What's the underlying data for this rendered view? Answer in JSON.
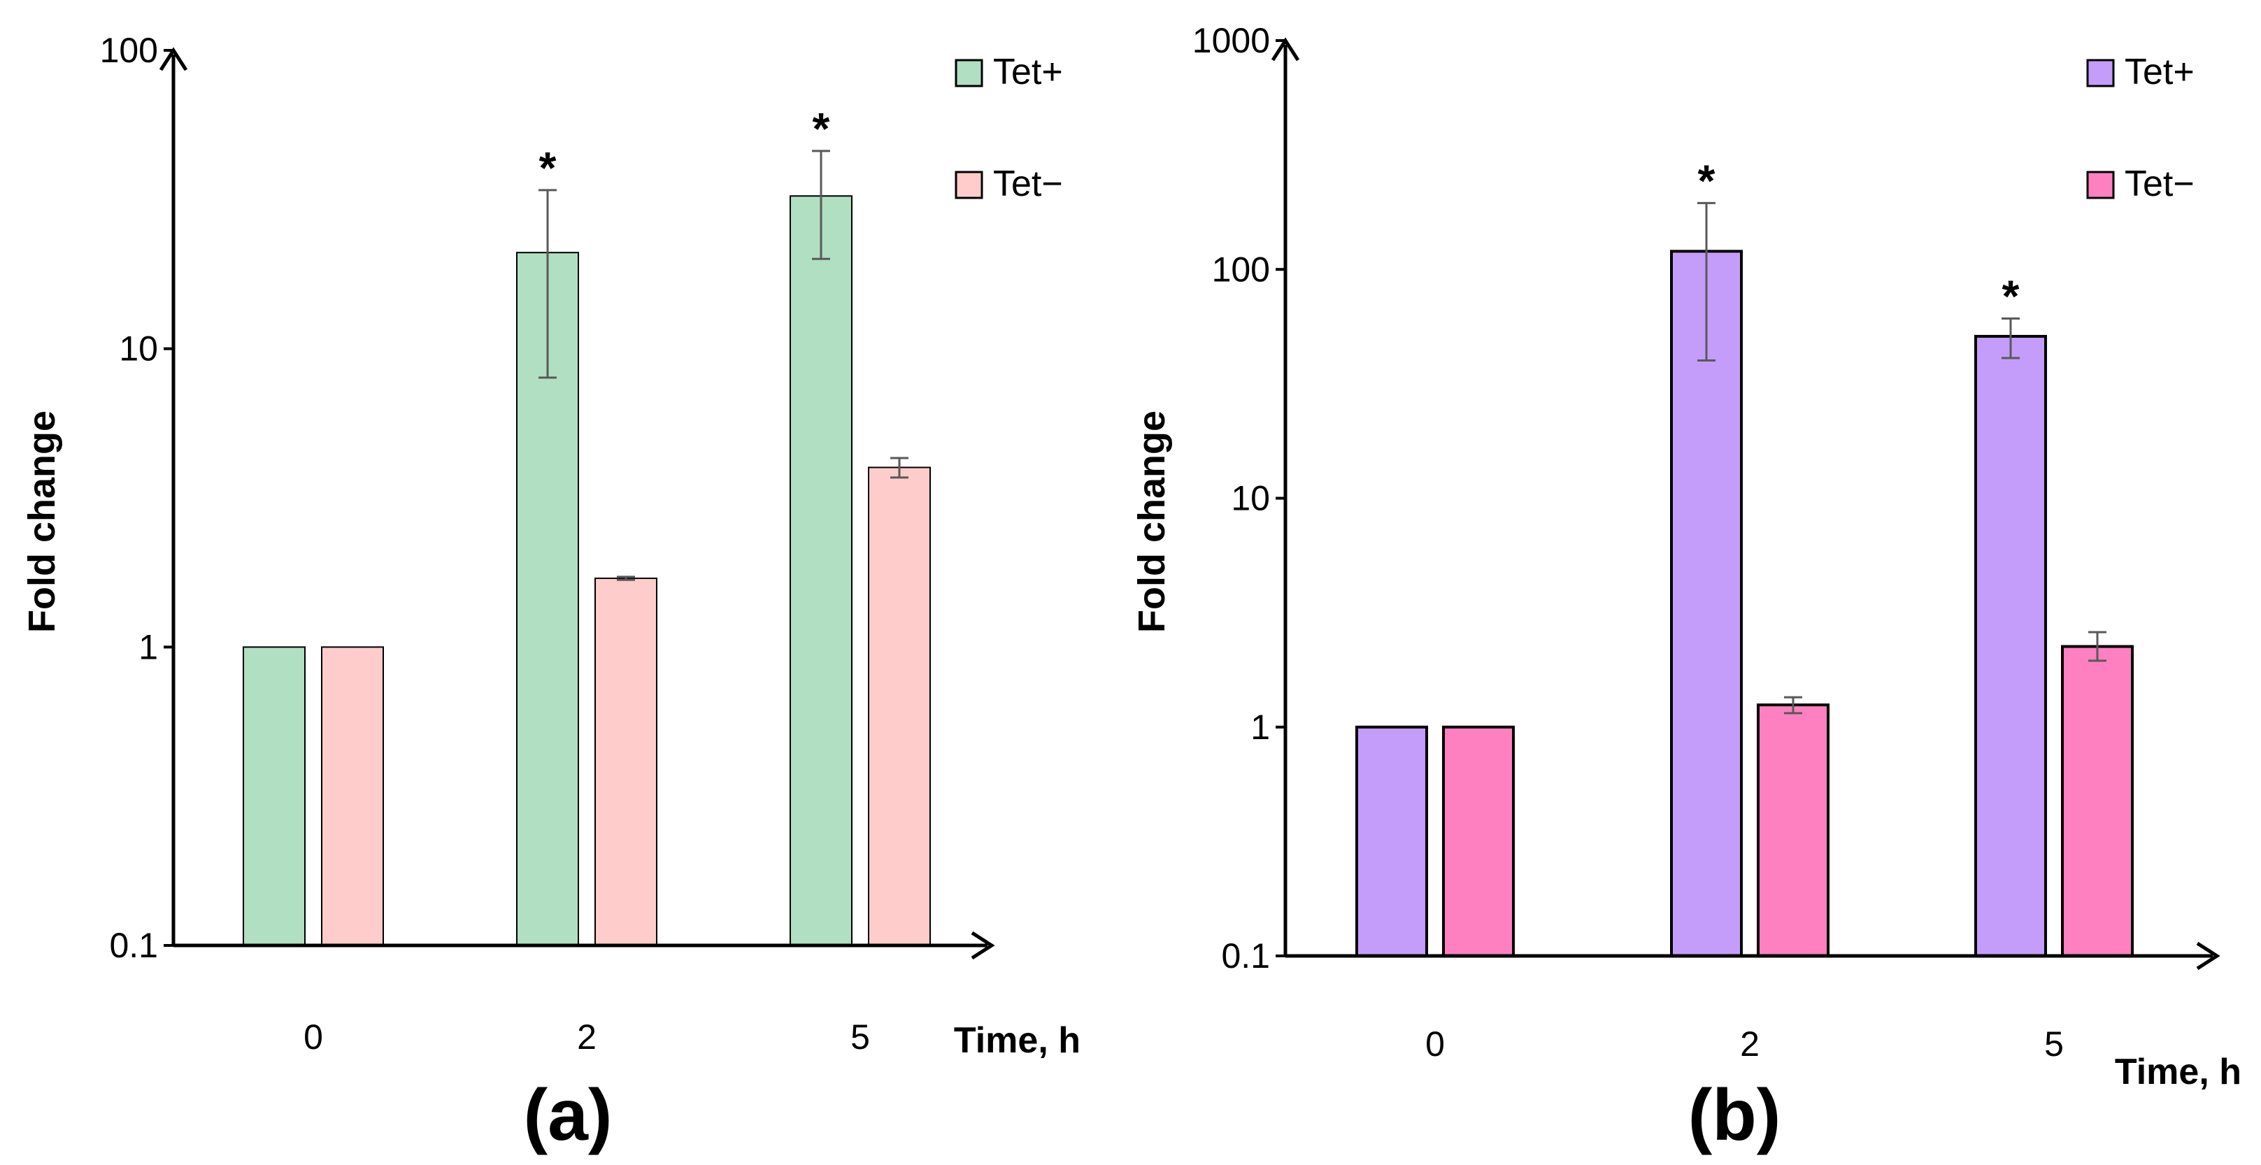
{
  "chart_data": [
    {
      "type": "bar",
      "panel_label": "(a)",
      "scale": "log",
      "ylim": [
        0.1,
        100
      ],
      "yticks": [
        "0.1",
        "1",
        "10",
        "100"
      ],
      "ytick_values": [
        0.1,
        1,
        10,
        100
      ],
      "ylabel": "Fold change",
      "xlabel": "Time, h",
      "categories": [
        "0",
        "2",
        "5"
      ],
      "series": [
        {
          "name": "Tet+",
          "values": [
            1,
            21,
            32.5
          ],
          "errors_low": [
            0,
            8,
            20
          ],
          "errors_high": [
            0,
            34,
            46
          ],
          "color": "#b1dfc2"
        },
        {
          "name": "Tet−",
          "values": [
            1,
            1.7,
            4.0
          ],
          "errors_low": [
            0,
            1.68,
            3.7
          ],
          "errors_high": [
            0,
            1.72,
            4.3
          ],
          "color": "#ffcccc"
        }
      ],
      "significance": [
        {
          "category": 1,
          "series": 0,
          "label": "*"
        },
        {
          "category": 2,
          "series": 0,
          "label": "*"
        }
      ],
      "legend_position": "top-right"
    },
    {
      "type": "bar",
      "panel_label": "(b)",
      "scale": "log",
      "ylim": [
        0.1,
        1000
      ],
      "yticks": [
        "0.1",
        "1",
        "10",
        "100",
        "1000"
      ],
      "ytick_values": [
        0.1,
        1,
        10,
        100,
        1000
      ],
      "ylabel": "Fold change",
      "xlabel": "Time, h",
      "categories": [
        "0",
        "2",
        "5"
      ],
      "series": [
        {
          "name": "Tet+",
          "values": [
            1,
            120,
            51
          ],
          "errors_low": [
            0,
            40,
            41
          ],
          "errors_high": [
            0,
            195,
            61
          ],
          "color": "#c49dfa"
        },
        {
          "name": "Tet−",
          "values": [
            1,
            1.25,
            2.25
          ],
          "errors_low": [
            0,
            1.15,
            1.95
          ],
          "errors_high": [
            0,
            1.35,
            2.6
          ],
          "color": "#ff80c0"
        }
      ],
      "significance": [
        {
          "category": 1,
          "series": 0,
          "label": "*"
        },
        {
          "category": 2,
          "series": 0,
          "label": "*"
        }
      ],
      "legend_position": "top-right"
    }
  ]
}
